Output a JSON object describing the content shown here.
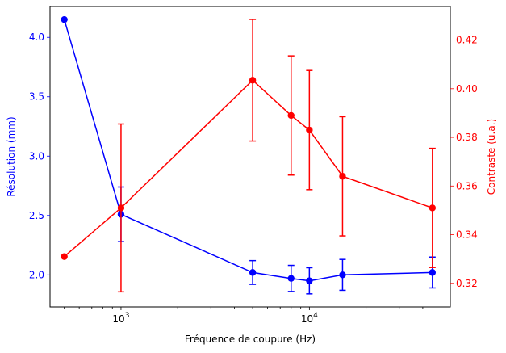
{
  "chart_data": {
    "type": "line",
    "xlabel": "Fréquence de coupure (Hz)",
    "x_scale": "log",
    "xlim": [
      420,
      56000
    ],
    "x_major_ticks": [
      {
        "value": 1000,
        "base": "10",
        "exp": "3"
      },
      {
        "value": 10000,
        "base": "10",
        "exp": "4"
      }
    ],
    "x_minor_ticks": [
      500,
      600,
      700,
      800,
      900,
      2000,
      3000,
      4000,
      5000,
      6000,
      7000,
      8000,
      9000,
      20000,
      30000,
      40000,
      50000
    ],
    "left_axis": {
      "label": "Résolution (mm)",
      "color": "#0000ff",
      "ylim": [
        1.73,
        4.26
      ],
      "ticks": [
        2.0,
        2.5,
        3.0,
        3.5,
        4.0
      ],
      "tick_labels": [
        "2.0",
        "2.5",
        "3.0",
        "3.5",
        "4.0"
      ]
    },
    "right_axis": {
      "label": "Contraste (u.a.)",
      "color": "#ff0000",
      "ylim": [
        0.3103,
        0.4338
      ],
      "ticks": [
        0.32,
        0.34,
        0.36,
        0.38,
        0.4,
        0.42
      ],
      "tick_labels": [
        "0.32",
        "0.34",
        "0.36",
        "0.38",
        "0.40",
        "0.42"
      ]
    },
    "x": [
      500,
      1000,
      5000,
      8000,
      10000,
      15000,
      45000
    ],
    "series": [
      {
        "axis": "left",
        "color": "#0000ff",
        "values": [
          4.15,
          2.51,
          2.02,
          1.97,
          1.95,
          2.0,
          2.02
        ],
        "errors": [
          null,
          0.23,
          0.1,
          0.11,
          0.11,
          0.13,
          0.13
        ]
      },
      {
        "axis": "right",
        "color": "#ff0000",
        "values": [
          0.331,
          0.351,
          0.4035,
          0.389,
          0.383,
          0.364,
          0.351
        ],
        "errors": [
          null,
          0.0345,
          0.025,
          0.0245,
          0.0245,
          0.0245,
          0.0245
        ]
      }
    ],
    "grid": false
  }
}
